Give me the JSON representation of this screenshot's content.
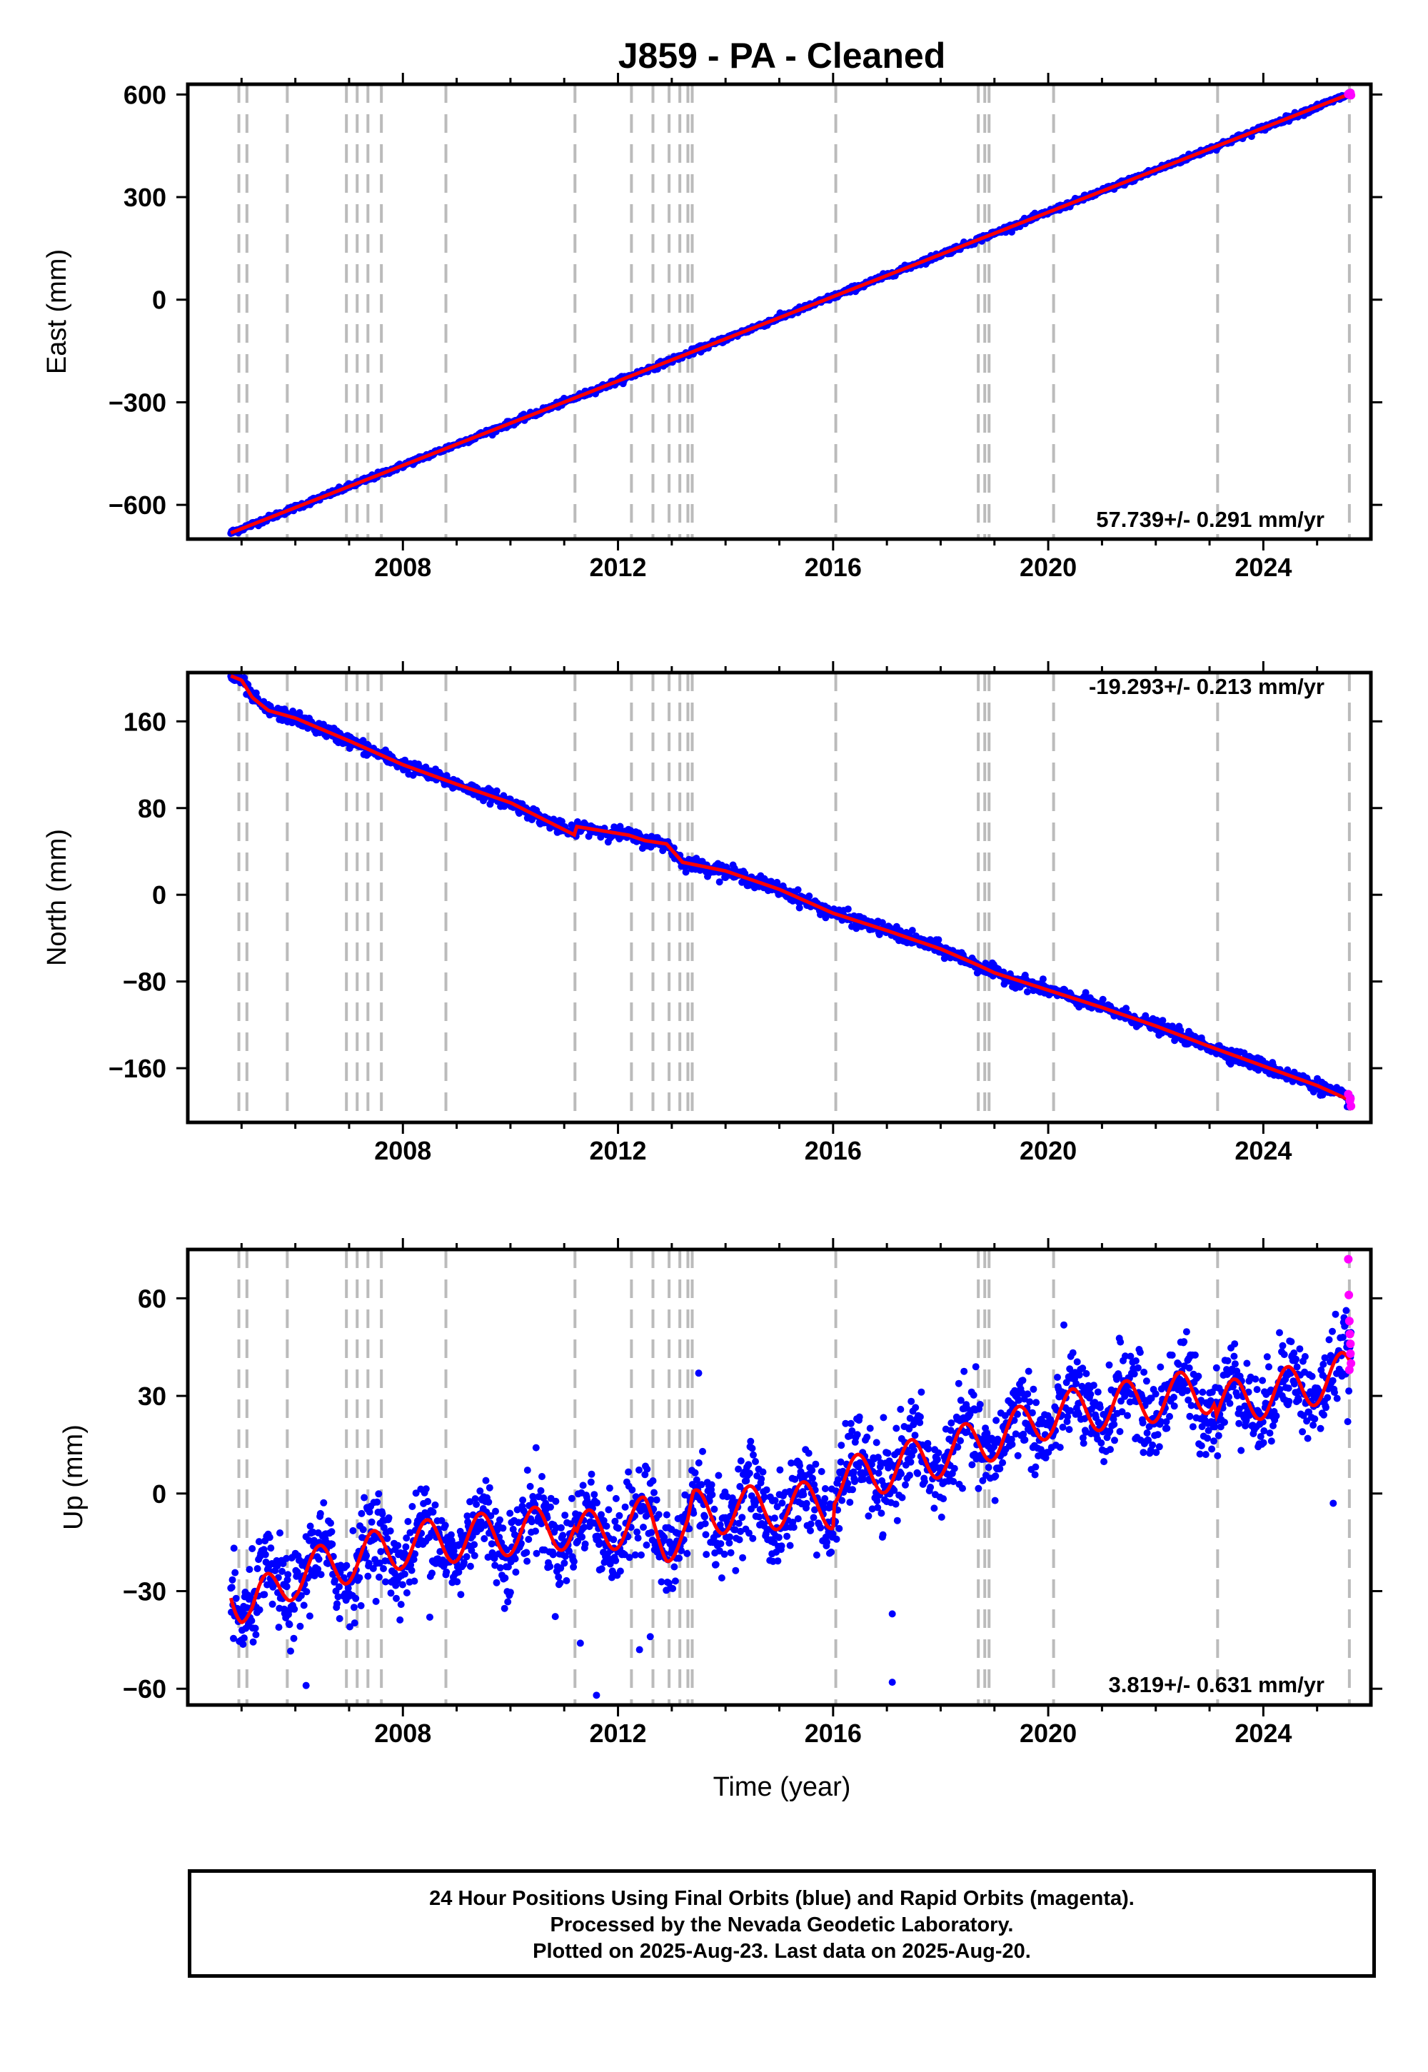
{
  "title": "J859  - PA - Cleaned",
  "xlabel": "Time (year)",
  "colors": {
    "final_orbits": "#0000ff",
    "rapid_orbits": "#ff00ff",
    "model": "#ff0000",
    "event_lines": "#bbbbbb"
  },
  "footer": {
    "line1": "24 Hour Positions Using Final Orbits (blue) and Rapid Orbits (magenta).",
    "line2": "Processed by the Nevada Geodetic Laboratory.",
    "line3": "Plotted on 2025-Aug-23. Last data on 2025-Aug-20."
  },
  "chart_data": [
    {
      "type": "scatter",
      "name": "east",
      "ylabel": "East (mm)",
      "rate_label": "57.739+/- 0.291 mm/yr",
      "xlim": [
        2004.0,
        2026.0
      ],
      "ylim": [
        -700,
        630
      ],
      "xticks": [
        2008,
        2012,
        2016,
        2020,
        2024
      ],
      "yticks": [
        -600,
        -300,
        0,
        300,
        600
      ],
      "ytick_labels": [
        "−600",
        "−300",
        "0",
        "300",
        "600"
      ],
      "trend": {
        "start": [
          2004.8,
          -682
        ],
        "end": [
          2025.63,
          603
        ]
      },
      "noise_mm": 4,
      "seasonal_amp_mm": 0,
      "rapid_points": [
        [
          2025.58,
          601
        ],
        [
          2025.62,
          605
        ],
        [
          2025.63,
          598
        ]
      ]
    },
    {
      "type": "scatter",
      "name": "north",
      "ylabel": "North (mm)",
      "rate_label": "-19.293+/- 0.213 mm/yr",
      "xlim": [
        2004.0,
        2026.0
      ],
      "ylim": [
        -210,
        205
      ],
      "xticks": [
        2008,
        2012,
        2016,
        2020,
        2024
      ],
      "yticks": [
        -160,
        -80,
        0,
        80,
        160
      ],
      "ytick_labels": [
        "−160",
        "−80",
        "0",
        "80",
        "160"
      ],
      "model": [
        [
          2004.8,
          202
        ],
        [
          2005.0,
          198
        ],
        [
          2005.2,
          182
        ],
        [
          2005.5,
          170
        ],
        [
          2006.0,
          163
        ],
        [
          2007.0,
          142
        ],
        [
          2008.0,
          120
        ],
        [
          2009.0,
          102
        ],
        [
          2010.0,
          85
        ],
        [
          2011.2,
          55
        ],
        [
          2011.22,
          63
        ],
        [
          2012.2,
          55
        ],
        [
          2012.5,
          50
        ],
        [
          2012.9,
          47
        ],
        [
          2013.2,
          30
        ],
        [
          2014.0,
          22
        ],
        [
          2015.0,
          5
        ],
        [
          2016.0,
          -17
        ],
        [
          2017.0,
          -33
        ],
        [
          2018.0,
          -50
        ],
        [
          2018.7,
          -65
        ],
        [
          2019.0,
          -72
        ],
        [
          2020.0,
          -88
        ],
        [
          2021.0,
          -104
        ],
        [
          2022.0,
          -121
        ],
        [
          2023.0,
          -140
        ],
        [
          2024.0,
          -158
        ],
        [
          2025.0,
          -176
        ],
        [
          2025.63,
          -190
        ]
      ],
      "noise_mm": 3,
      "seasonal_amp_mm": 0,
      "rapid_points": [
        [
          2025.58,
          -184
        ],
        [
          2025.61,
          -190
        ],
        [
          2025.63,
          -195
        ],
        [
          2025.62,
          -188
        ]
      ]
    },
    {
      "type": "scatter",
      "name": "up",
      "ylabel": "Up (mm)",
      "rate_label": "3.819+/- 0.631 mm/yr",
      "xlim": [
        2004.0,
        2026.0
      ],
      "ylim": [
        -65,
        75
      ],
      "xticks": [
        2008,
        2012,
        2016,
        2020,
        2024
      ],
      "yticks": [
        -60,
        -30,
        0,
        30,
        60
      ],
      "ytick_labels": [
        "−60",
        "−30",
        "0",
        "30",
        "60"
      ],
      "model": [
        [
          2004.8,
          -28
        ],
        [
          2005.0,
          -33
        ],
        [
          2005.2,
          -35
        ],
        [
          2006.0,
          -25
        ],
        [
          2008.0,
          -16
        ],
        [
          2010.0,
          -12
        ],
        [
          2011.2,
          -10
        ],
        [
          2011.22,
          -13
        ],
        [
          2012.5,
          -8
        ],
        [
          2012.9,
          -14
        ],
        [
          2013.3,
          -12
        ],
        [
          2013.4,
          -6
        ],
        [
          2015.8,
          -3
        ],
        [
          2016.0,
          -4
        ],
        [
          2016.02,
          3
        ],
        [
          2018.0,
          12
        ],
        [
          2019.5,
          20
        ],
        [
          2020.0,
          24
        ],
        [
          2022.0,
          29
        ],
        [
          2023.1,
          32
        ],
        [
          2023.12,
          27
        ],
        [
          2024.0,
          30
        ],
        [
          2025.63,
          37
        ]
      ],
      "noise_mm": 6.5,
      "seasonal_amp_mm": 7,
      "outliers": [
        [
          2011.3,
          -46
        ],
        [
          2011.6,
          -62
        ],
        [
          2012.4,
          -48
        ],
        [
          2012.6,
          -44
        ],
        [
          2013.5,
          37
        ],
        [
          2017.1,
          -37
        ],
        [
          2017.1,
          -58
        ],
        [
          2025.3,
          -3
        ],
        [
          2008.5,
          -38
        ],
        [
          2006.2,
          -59
        ]
      ],
      "rapid_points": [
        [
          2025.58,
          72
        ],
        [
          2025.59,
          61
        ],
        [
          2025.6,
          53
        ],
        [
          2025.61,
          49
        ],
        [
          2025.62,
          46
        ],
        [
          2025.62,
          43
        ],
        [
          2025.63,
          40
        ],
        [
          2025.6,
          38
        ]
      ]
    }
  ],
  "event_lines": [
    2004.95,
    2005.1,
    2005.85,
    2006.95,
    2007.15,
    2007.35,
    2007.6,
    2008.8,
    2011.2,
    2012.25,
    2012.65,
    2012.95,
    2013.15,
    2013.3,
    2013.38,
    2016.05,
    2018.7,
    2018.82,
    2018.9,
    2020.1,
    2023.15,
    2025.6
  ]
}
